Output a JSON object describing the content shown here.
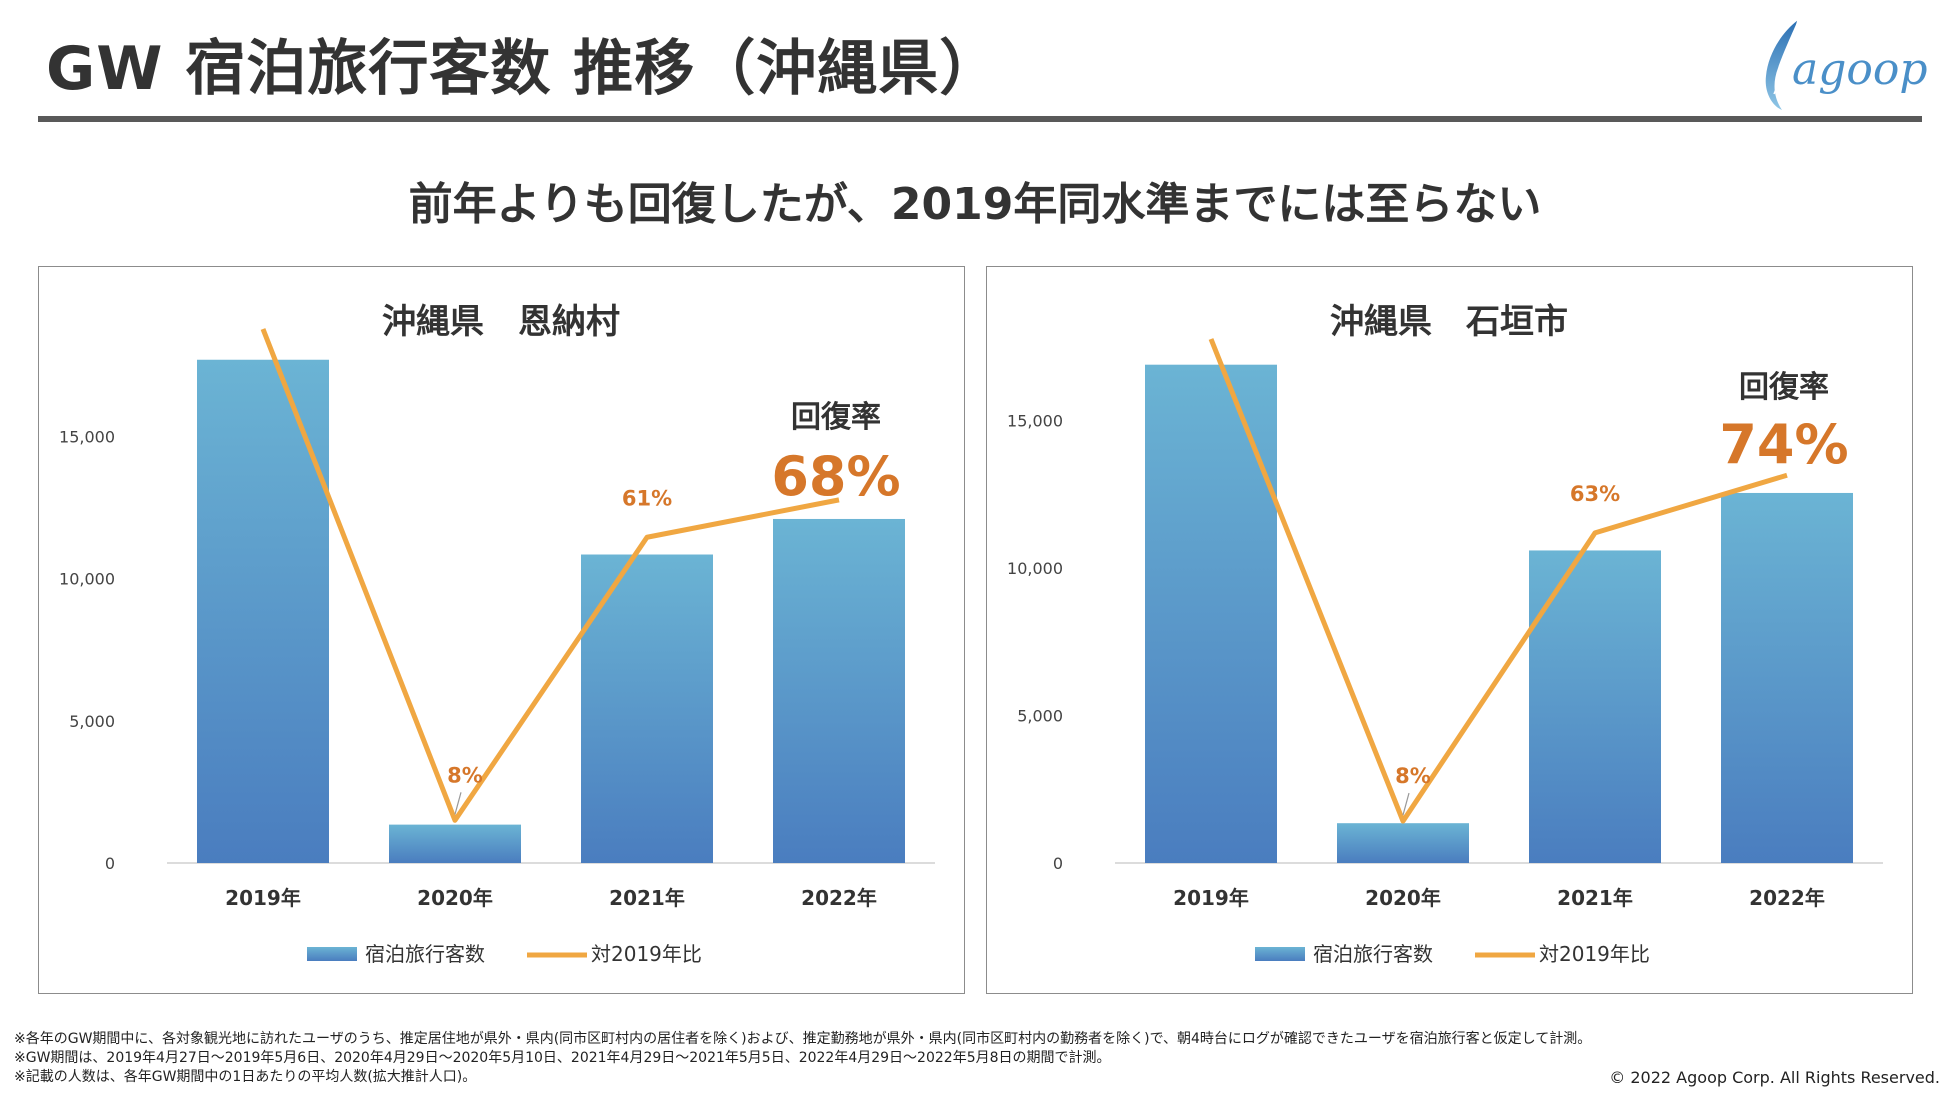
{
  "header": {
    "title": "GW 宿泊旅行客数 推移（沖縄県）",
    "logo_text": "agoop",
    "logo_icon": "quill-logo-icon"
  },
  "subtitle": "前年よりも回復したが、2019年同水準までには至らない",
  "colors": {
    "bar_top": "#6bb4d4",
    "bar_bottom": "#4a7dbf",
    "line": "#f0a742",
    "accent_text": "#d6772a"
  },
  "chart_data": [
    {
      "type": "bar",
      "title": "沖縄県　恩納村",
      "categories": [
        "2019年",
        "2020年",
        "2021年",
        "2022年"
      ],
      "series": [
        {
          "name": "宿泊旅行客数",
          "type": "bar",
          "values": [
            17700,
            1350,
            10850,
            12100
          ]
        },
        {
          "name": "対2019年比",
          "type": "line",
          "values": [
            100,
            8,
            61,
            68
          ]
        }
      ],
      "line_labels": [
        "",
        "8%",
        "61%",
        ""
      ],
      "ylim": [
        0,
        18500
      ],
      "yticks": [
        0,
        5000,
        10000,
        15000
      ],
      "ytick_labels": [
        "0",
        "5,000",
        "10,000",
        "15,000"
      ],
      "recovery_label": "回復率",
      "recovery_value": "68%",
      "legend_position": "bottom",
      "grid": false
    },
    {
      "type": "bar",
      "title": "沖縄県　石垣市",
      "categories": [
        "2019年",
        "2020年",
        "2021年",
        "2022年"
      ],
      "series": [
        {
          "name": "宿泊旅行客数",
          "type": "bar",
          "values": [
            16900,
            1350,
            10600,
            12550
          ]
        },
        {
          "name": "対2019年比",
          "type": "line",
          "values": [
            100,
            8,
            63,
            74
          ]
        }
      ],
      "line_labels": [
        "",
        "8%",
        "63%",
        ""
      ],
      "ylim": [
        0,
        17500
      ],
      "yticks": [
        0,
        5000,
        10000,
        15000
      ],
      "ytick_labels": [
        "0",
        "5,000",
        "10,000",
        "15,000"
      ],
      "recovery_label": "回復率",
      "recovery_value": "74%",
      "legend_position": "bottom",
      "grid": false
    }
  ],
  "footnotes": [
    "※各年のGW期間中に、各対象観光地に訪れたユーザのうち、推定居住地が県外・県内(同市区町村内の居住者を除く)および、推定勤務地が県外・県内(同市区町村内の勤務者を除く)で、朝4時台にログが確認できたユーザを宿泊旅行客と仮定して計測。",
    "※GW期間は、2019年4月27日～2019年5月6日、2020年4月29日～2020年5月10日、2021年4月29日～2021年5月5日、2022年4月29日～2022年5月8日の期間で計測。",
    "※記載の人数は、各年GW期間中の1日あたりの平均人数(拡大推計人口)。"
  ],
  "copyright": "© 2022 Agoop Corp. All Rights Reserved."
}
